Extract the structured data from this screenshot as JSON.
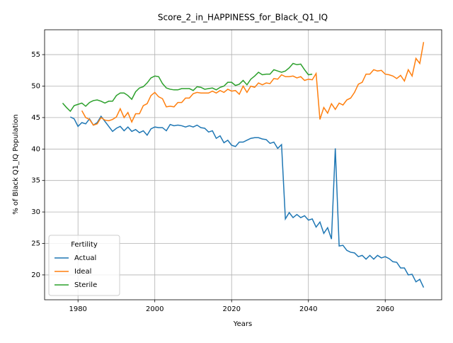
{
  "chart_data": {
    "type": "line",
    "title": "Score_2_in_HAPPINESS_for_Black_Q1_IQ",
    "xlabel": "Years",
    "ylabel": "% of Black Q1_IQ Population",
    "x": [
      1976,
      1977,
      1978,
      1979,
      1980,
      1981,
      1982,
      1983,
      1984,
      1985,
      1986,
      1987,
      1988,
      1989,
      1990,
      1991,
      1992,
      1993,
      1994,
      1995,
      1996,
      1997,
      1998,
      1999,
      2000,
      2001,
      2002,
      2003,
      2004,
      2005,
      2006,
      2007,
      2008,
      2009,
      2010,
      2011,
      2012,
      2013,
      2014,
      2015,
      2016,
      2017,
      2018,
      2019,
      2020,
      2021,
      2022,
      2023,
      2024,
      2025,
      2026,
      2027,
      2028,
      2029,
      2030,
      2031,
      2032,
      2033,
      2034,
      2035,
      2036,
      2037,
      2038,
      2039,
      2040,
      2041,
      2042,
      2043,
      2044,
      2045,
      2046,
      2047,
      2048,
      2049,
      2050,
      2051,
      2052,
      2053,
      2054,
      2055,
      2056,
      2057,
      2058,
      2059,
      2060,
      2061,
      2062,
      2063,
      2064,
      2065,
      2066,
      2067,
      2068,
      2069,
      2070
    ],
    "series": [
      {
        "name": "Actual",
        "color": "#1f77b4",
        "values": [
          null,
          null,
          45.1,
          44.8,
          43.6,
          44.2,
          44.0,
          44.8,
          43.8,
          44.2,
          45.2,
          44.4,
          43.6,
          42.8,
          43.3,
          43.6,
          42.9,
          43.5,
          42.8,
          43.1,
          42.6,
          42.9,
          42.2,
          43.2,
          43.5,
          43.4,
          43.4,
          42.9,
          43.9,
          43.7,
          43.8,
          43.7,
          43.5,
          43.7,
          43.5,
          43.8,
          43.4,
          43.3,
          42.7,
          42.9,
          41.7,
          42.1,
          41.0,
          41.4,
          40.6,
          40.4,
          41.1,
          41.1,
          41.4,
          41.7,
          41.8,
          41.8,
          41.6,
          41.5,
          40.9,
          41.1,
          40.1,
          40.7,
          28.9,
          29.9,
          29.1,
          29.6,
          29.1,
          29.4,
          28.7,
          28.9,
          27.6,
          28.4,
          26.6,
          27.5,
          25.7,
          40.1,
          24.6,
          24.7,
          23.9,
          23.6,
          23.5,
          22.9,
          23.1,
          22.5,
          23.1,
          22.5,
          23.1,
          22.7,
          22.9,
          22.6,
          22.1,
          22.0,
          21.1,
          21.1,
          20.0,
          20.1,
          18.9,
          19.3,
          18.0
        ]
      },
      {
        "name": "Ideal",
        "color": "#ff7f0e",
        "values": [
          null,
          null,
          null,
          null,
          null,
          46.1,
          45.0,
          44.7,
          43.8,
          44.0,
          45.0,
          44.6,
          44.5,
          44.7,
          45.1,
          46.4,
          45.0,
          45.8,
          44.3,
          45.6,
          45.6,
          46.9,
          47.2,
          48.5,
          49.0,
          48.3,
          48.0,
          46.7,
          46.8,
          46.7,
          47.4,
          47.4,
          48.1,
          48.1,
          48.8,
          49.0,
          48.9,
          48.9,
          48.9,
          49.2,
          48.9,
          49.3,
          49.0,
          49.5,
          49.2,
          49.3,
          48.7,
          50.0,
          49.0,
          50.0,
          49.8,
          50.5,
          50.2,
          50.5,
          50.4,
          51.2,
          51.1,
          51.8,
          51.5,
          51.5,
          51.6,
          51.3,
          51.5,
          50.9,
          51.1,
          51.0,
          52.0,
          44.7,
          46.6,
          45.7,
          47.2,
          46.3,
          47.3,
          47.0,
          47.8,
          48.1,
          49.0,
          50.3,
          50.6,
          51.9,
          51.9,
          52.6,
          52.4,
          52.5,
          51.9,
          51.8,
          51.6,
          51.2,
          51.7,
          50.8,
          52.6,
          51.6,
          54.4,
          53.6,
          57.0
        ]
      },
      {
        "name": "Sterile",
        "color": "#2ca02c",
        "values": [
          47.3,
          46.6,
          46.0,
          46.9,
          47.1,
          47.3,
          46.8,
          47.4,
          47.7,
          47.8,
          47.6,
          47.3,
          47.6,
          47.6,
          48.5,
          48.9,
          48.9,
          48.5,
          47.9,
          49.1,
          49.7,
          49.9,
          50.5,
          51.3,
          51.6,
          51.5,
          50.4,
          49.7,
          49.5,
          49.4,
          49.4,
          49.6,
          49.6,
          49.6,
          49.3,
          49.9,
          49.8,
          49.5,
          49.6,
          49.7,
          49.4,
          49.8,
          50.0,
          50.6,
          50.6,
          50.1,
          50.3,
          50.9,
          50.2,
          51.1,
          51.6,
          52.2,
          51.8,
          51.9,
          51.9,
          52.6,
          52.4,
          52.2,
          52.4,
          52.9,
          53.6,
          53.4,
          53.5,
          52.6,
          51.8,
          51.9,
          null,
          null,
          null,
          null,
          null,
          null,
          null,
          null,
          null,
          null,
          null,
          null,
          null,
          null,
          null,
          null,
          null,
          null,
          null,
          null,
          null,
          null,
          null,
          null,
          null,
          null,
          null,
          null,
          null
        ]
      }
    ],
    "xlim": [
      1971.3,
      2074.7
    ],
    "xticks": [
      1980,
      2000,
      2020,
      2040,
      2060
    ],
    "ylim": [
      16.05,
      58.95
    ],
    "yticks": [
      20,
      25,
      30,
      35,
      40,
      45,
      50,
      55
    ],
    "grid": true,
    "legend_title": "Fertility",
    "legend_position": "lower left"
  }
}
